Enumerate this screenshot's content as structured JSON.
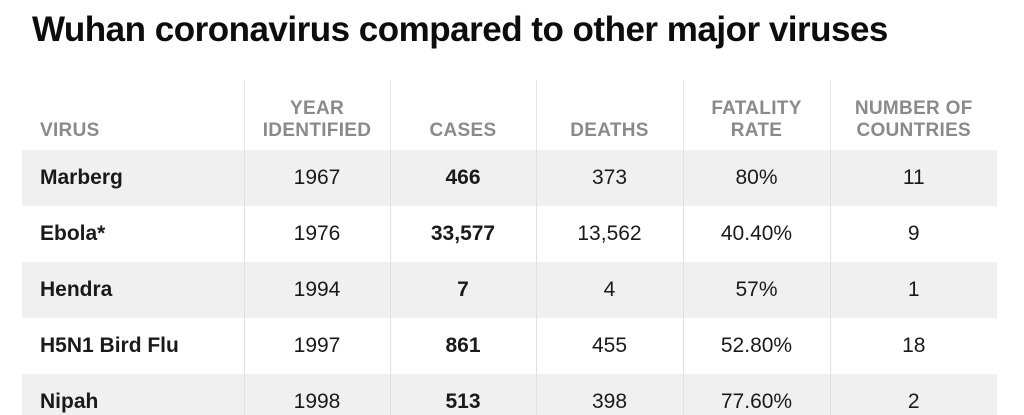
{
  "title": "Wuhan coronavirus compared to other major viruses",
  "chart_data": {
    "type": "table",
    "title": "Wuhan coronavirus compared to other major viruses",
    "columns": [
      [
        "VIRUS"
      ],
      [
        "YEAR",
        "IDENTIFIED"
      ],
      [
        "CASES"
      ],
      [
        "DEATHS"
      ],
      [
        "FATALITY",
        "RATE"
      ],
      [
        "NUMBER OF",
        "COUNTRIES"
      ]
    ],
    "rows": [
      {
        "virus": "Marberg",
        "year": "1967",
        "cases": "466",
        "deaths": "373",
        "fatality_rate": "80%",
        "countries": "11"
      },
      {
        "virus": "Ebola*",
        "year": "1976",
        "cases": "33,577",
        "deaths": "13,562",
        "fatality_rate": "40.40%",
        "countries": "9"
      },
      {
        "virus": "Hendra",
        "year": "1994",
        "cases": "7",
        "deaths": "4",
        "fatality_rate": "57%",
        "countries": "1"
      },
      {
        "virus": "H5N1 Bird Flu",
        "year": "1997",
        "cases": "861",
        "deaths": "455",
        "fatality_rate": "52.80%",
        "countries": "18"
      },
      {
        "virus": "Nipah",
        "year": "1998",
        "cases": "513",
        "deaths": "398",
        "fatality_rate": "77.60%",
        "countries": "2"
      }
    ]
  }
}
